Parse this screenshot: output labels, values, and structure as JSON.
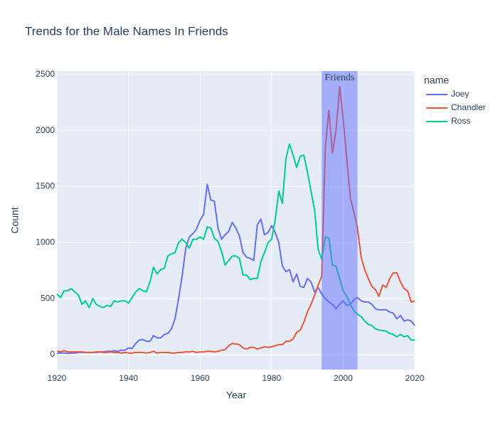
{
  "chart_data": {
    "type": "line",
    "title": "Trends for the Male Names In Friends",
    "x_label": "Year",
    "y_label": "Count",
    "legend_title": "name",
    "legend_position": "right",
    "grid": true,
    "xlim": [
      1920,
      2020
    ],
    "xticks": [
      1920,
      1940,
      1960,
      1980,
      2000,
      2020
    ],
    "ylim": [
      -133,
      2530
    ],
    "yticks": [
      0,
      500,
      1000,
      1500,
      2000,
      2500
    ],
    "highlight": {
      "x0": 1994,
      "x1": 2004,
      "label": "Friends",
      "color": "#636efa"
    },
    "x": [
      1920,
      1921,
      1922,
      1923,
      1924,
      1925,
      1926,
      1927,
      1928,
      1929,
      1930,
      1931,
      1932,
      1933,
      1934,
      1935,
      1936,
      1937,
      1938,
      1939,
      1940,
      1941,
      1942,
      1943,
      1944,
      1945,
      1946,
      1947,
      1948,
      1949,
      1950,
      1951,
      1952,
      1953,
      1954,
      1955,
      1956,
      1957,
      1958,
      1959,
      1960,
      1961,
      1962,
      1963,
      1964,
      1965,
      1966,
      1967,
      1968,
      1969,
      1970,
      1971,
      1972,
      1973,
      1974,
      1975,
      1976,
      1977,
      1978,
      1979,
      1980,
      1981,
      1982,
      1983,
      1984,
      1985,
      1986,
      1987,
      1988,
      1989,
      1990,
      1991,
      1992,
      1993,
      1994,
      1995,
      1996,
      1997,
      1998,
      1999,
      2000,
      2001,
      2002,
      2003,
      2004,
      2005,
      2006,
      2007,
      2008,
      2009,
      2010,
      2011,
      2012,
      2013,
      2014,
      2015,
      2016,
      2017,
      2018,
      2019,
      2020
    ],
    "series": [
      {
        "name": "Joey",
        "color": "#636efa",
        "values": [
          10,
          15,
          15,
          10,
          15,
          15,
          20,
          20,
          20,
          20,
          20,
          20,
          25,
          25,
          30,
          30,
          35,
          30,
          40,
          40,
          60,
          55,
          100,
          130,
          135,
          120,
          120,
          170,
          150,
          150,
          180,
          190,
          230,
          320,
          500,
          700,
          950,
          1050,
          1080,
          1120,
          1200,
          1250,
          1520,
          1380,
          1370,
          1130,
          1030,
          1070,
          1100,
          1180,
          1130,
          1060,
          910,
          870,
          860,
          840,
          1160,
          1210,
          1070,
          1090,
          1150,
          1090,
          1000,
          790,
          740,
          760,
          650,
          720,
          610,
          600,
          680,
          650,
          560,
          600,
          540,
          500,
          470,
          450,
          410,
          450,
          480,
          440,
          450,
          490,
          510,
          480,
          470,
          470,
          450,
          410,
          400,
          400,
          400,
          380,
          370,
          320,
          350,
          300,
          310,
          300,
          260
        ]
      },
      {
        "name": "Chandler",
        "color": "#EF553B",
        "values": [
          30,
          25,
          35,
          25,
          25,
          25,
          25,
          25,
          20,
          20,
          20,
          25,
          25,
          20,
          20,
          25,
          20,
          20,
          15,
          20,
          15,
          15,
          20,
          20,
          20,
          15,
          20,
          30,
          15,
          20,
          20,
          20,
          15,
          15,
          20,
          20,
          25,
          25,
          30,
          20,
          25,
          25,
          30,
          30,
          25,
          30,
          40,
          45,
          80,
          100,
          95,
          90,
          60,
          50,
          65,
          65,
          50,
          60,
          70,
          65,
          70,
          80,
          90,
          90,
          120,
          120,
          140,
          200,
          220,
          290,
          380,
          450,
          530,
          620,
          700,
          1850,
          2180,
          1800,
          2000,
          2390,
          2100,
          1750,
          1400,
          1270,
          1130,
          870,
          760,
          680,
          610,
          580,
          520,
          620,
          600,
          680,
          730,
          730,
          650,
          590,
          570,
          470,
          480
        ]
      },
      {
        "name": "Ross",
        "color": "#00cc96",
        "values": [
          540,
          510,
          570,
          570,
          590,
          560,
          530,
          450,
          480,
          420,
          500,
          450,
          430,
          420,
          440,
          430,
          480,
          470,
          480,
          480,
          460,
          510,
          560,
          590,
          570,
          560,
          650,
          780,
          720,
          760,
          770,
          880,
          900,
          910,
          1000,
          1030,
          1000,
          950,
          1030,
          1030,
          1050,
          1030,
          1140,
          1130,
          1040,
          1010,
          920,
          800,
          840,
          880,
          880,
          860,
          710,
          710,
          670,
          680,
          680,
          830,
          910,
          1000,
          1030,
          1200,
          1460,
          1350,
          1750,
          1880,
          1780,
          1670,
          1770,
          1780,
          1630,
          1460,
          1290,
          940,
          850,
          1050,
          1040,
          800,
          790,
          680,
          570,
          520,
          450,
          390,
          360,
          340,
          300,
          270,
          260,
          230,
          220,
          215,
          210,
          190,
          180,
          160,
          180,
          160,
          170,
          130,
          130
        ]
      }
    ]
  }
}
